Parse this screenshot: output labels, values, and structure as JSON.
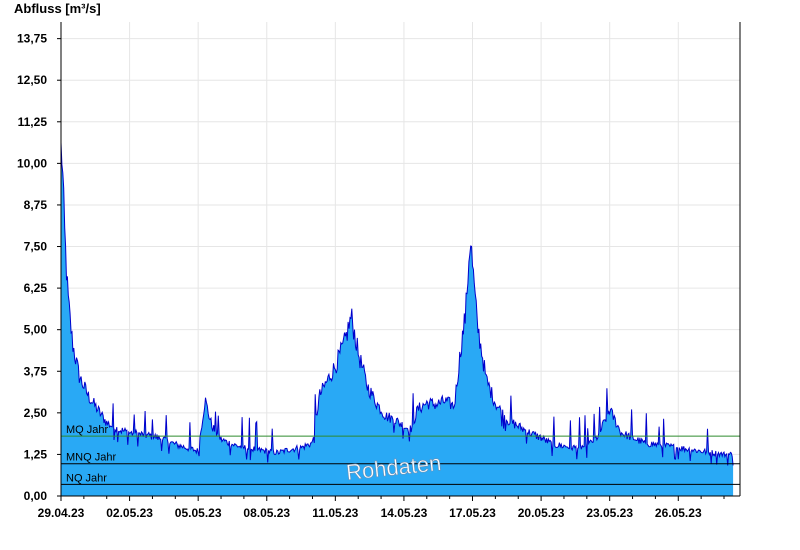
{
  "chart_data": {
    "type": "area",
    "ylabel": "Abfluss [m³/s]",
    "ylim": [
      0,
      14.25
    ],
    "yticks": [
      "0,00",
      "1,25",
      "2,50",
      "3,75",
      "5,00",
      "6,25",
      "7,50",
      "8,75",
      "10,00",
      "11,25",
      "12,50",
      "13,75"
    ],
    "ytick_values": [
      0,
      1.25,
      2.5,
      3.75,
      5.0,
      6.25,
      7.5,
      8.75,
      10.0,
      11.25,
      12.5,
      13.75
    ],
    "x_start": "29.04.23",
    "x_end": "29.05.23",
    "xtick_labels": [
      "29.04.23",
      "02.05.23",
      "05.05.23",
      "08.05.23",
      "11.05.23",
      "14.05.23",
      "17.05.23",
      "20.05.23",
      "23.05.23",
      "26.05.23"
    ],
    "xtick_days": [
      0,
      3,
      6,
      9,
      12,
      15,
      18,
      21,
      24,
      27
    ],
    "grid": true,
    "fill_color": "#29a9f5",
    "line_color": "#0000cc",
    "series": [
      {
        "x_days": [
          0,
          0.05,
          0.15,
          0.3,
          0.5,
          0.8,
          1.2,
          1.6,
          2.0,
          2.5,
          3.0,
          3.5,
          4.0,
          4.5,
          5.0,
          5.5,
          6.0,
          6.3,
          6.6,
          7.0,
          7.5,
          8.0,
          8.5,
          9.0,
          9.5,
          10.0,
          10.5,
          11.0,
          11.3,
          11.6,
          12.0,
          12.4,
          12.7,
          13.0,
          13.4,
          13.8,
          14.2,
          14.6,
          15.0,
          15.3,
          15.6,
          16.0,
          16.4,
          16.8,
          17.2,
          17.5,
          17.7,
          17.9,
          18.2,
          18.6,
          19.0,
          19.5,
          20.0,
          20.5,
          21.0,
          21.5,
          22.0,
          22.5,
          23.0,
          23.5,
          24.0,
          24.5,
          25.0,
          25.5,
          26.0,
          26.5,
          27.0,
          27.5,
          28.0,
          28.5,
          29.0,
          29.4
        ],
        "values": [
          10.4,
          10.2,
          8.0,
          6.0,
          4.6,
          3.6,
          3.0,
          2.6,
          2.2,
          2.0,
          1.9,
          1.85,
          1.8,
          1.7,
          1.55,
          1.45,
          1.35,
          2.9,
          2.1,
          1.7,
          1.55,
          1.45,
          1.4,
          1.35,
          1.3,
          1.4,
          1.45,
          1.6,
          3.0,
          3.4,
          3.9,
          4.6,
          5.4,
          4.3,
          3.3,
          2.8,
          2.4,
          2.3,
          2.1,
          2.0,
          2.6,
          2.8,
          2.75,
          2.85,
          2.7,
          4.5,
          5.5,
          7.8,
          5.2,
          3.5,
          2.8,
          2.3,
          2.1,
          1.9,
          1.75,
          1.55,
          1.5,
          1.45,
          1.5,
          1.8,
          2.6,
          1.9,
          1.75,
          1.6,
          1.55,
          1.5,
          1.45,
          1.4,
          1.35,
          1.3,
          1.25,
          1.25
        ]
      }
    ],
    "reference_lines": [
      {
        "label": "MQ Jahr",
        "value": 1.8,
        "color": "#2e8b2e"
      },
      {
        "label": "MNQ Jahr",
        "value": 0.97,
        "color": "#000000"
      },
      {
        "label": "NQ Jahr",
        "value": 0.35,
        "color": "#000000"
      }
    ],
    "watermark": "Rohdaten"
  }
}
